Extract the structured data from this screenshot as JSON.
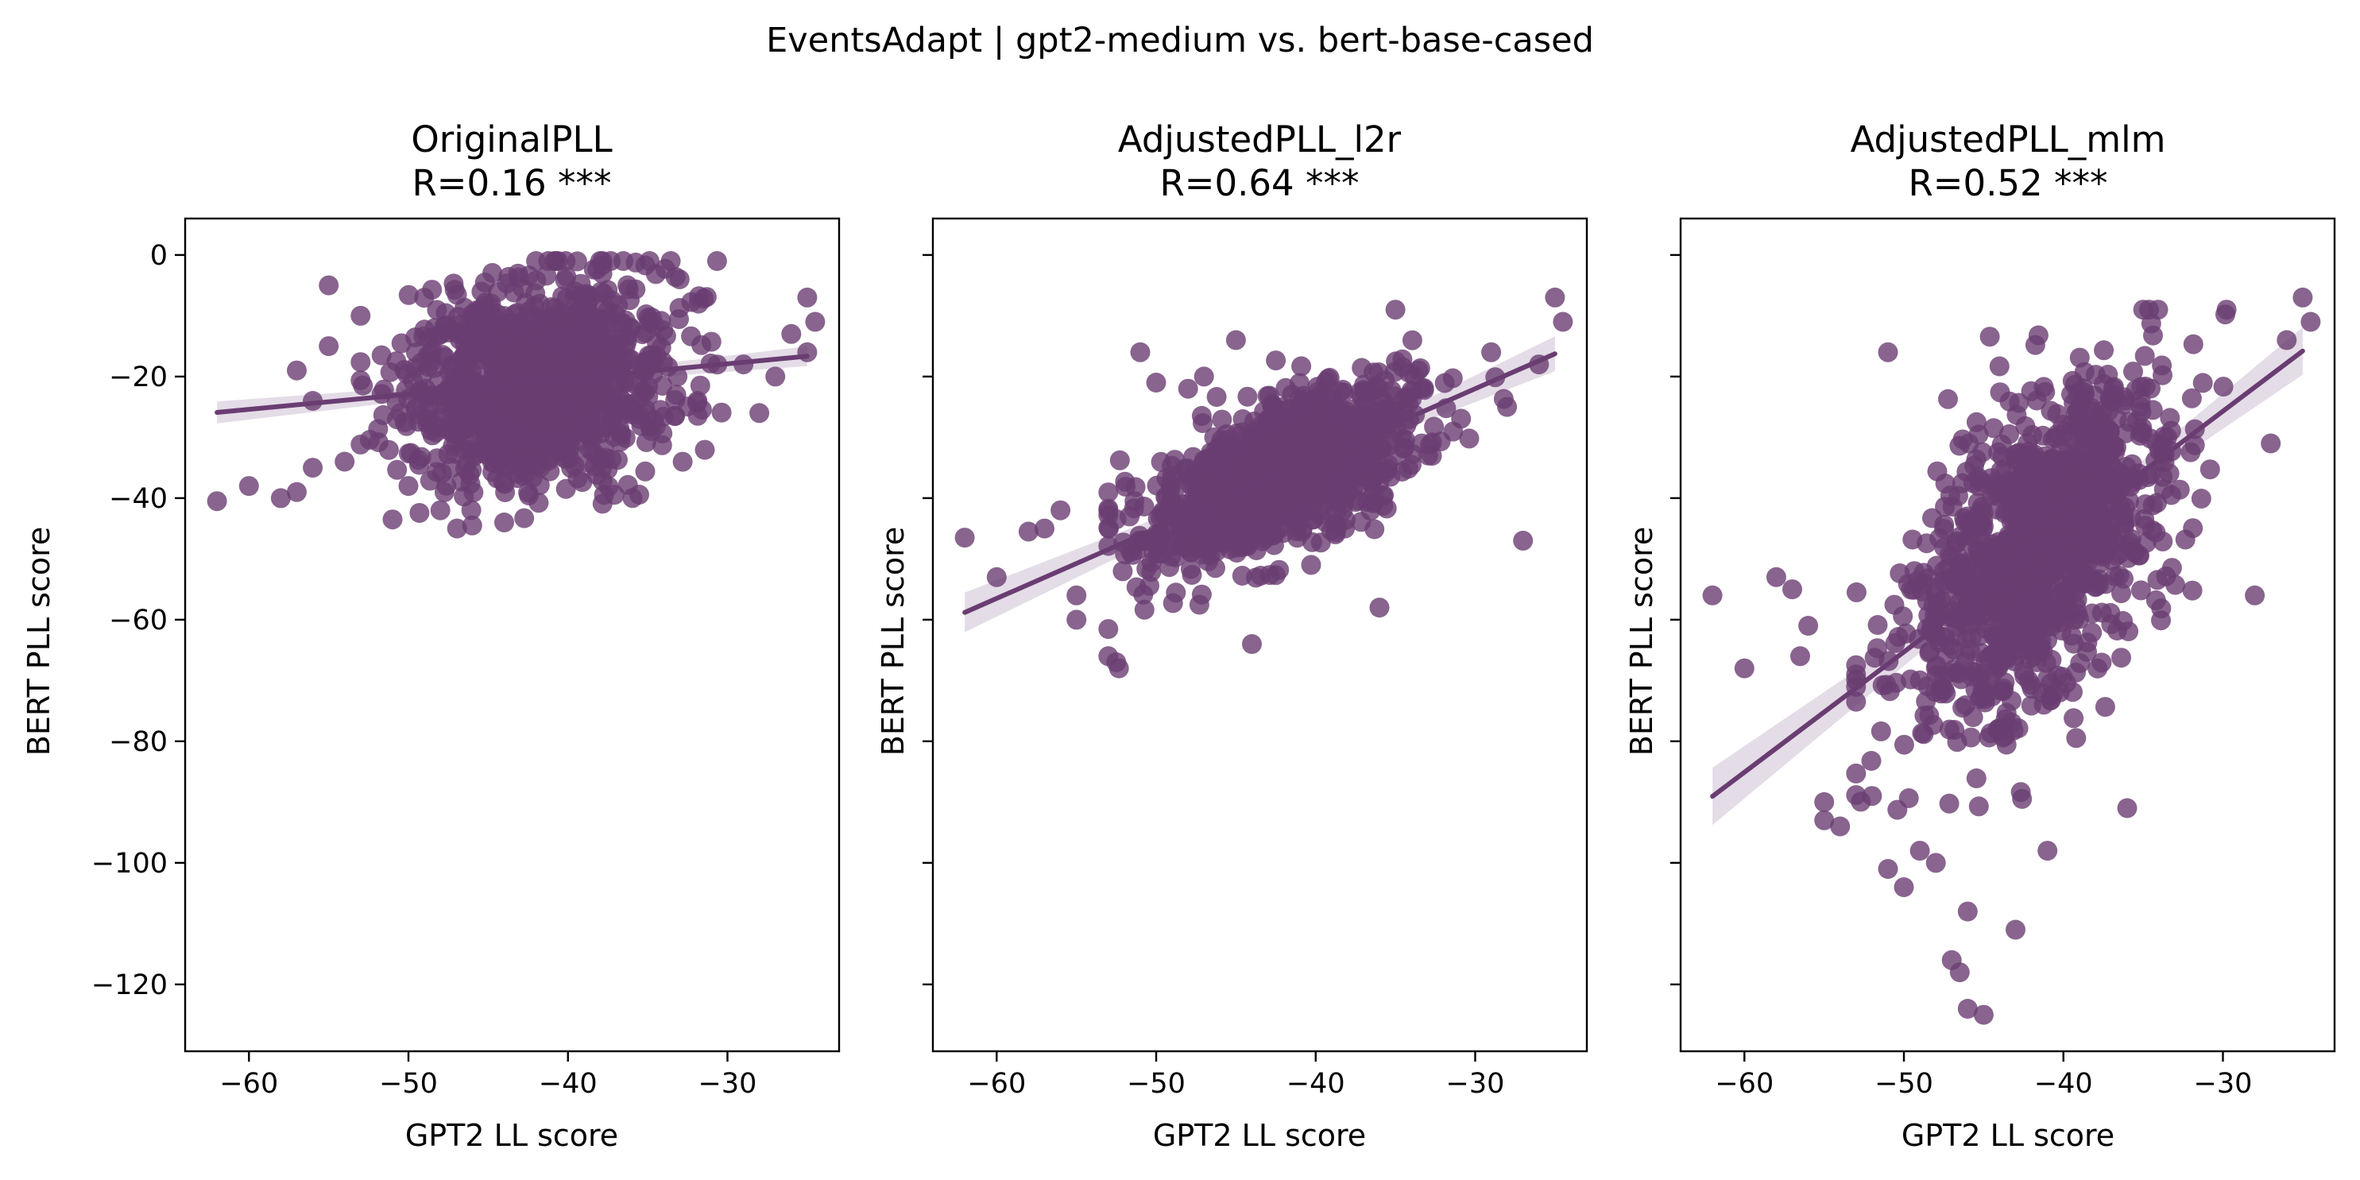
{
  "figure": {
    "suptitle": "EventsAdapt | gpt2-medium vs. bert-base-cased",
    "point_color": "#6a3d72",
    "band_color": "#6a3d72"
  },
  "chart_data": [
    {
      "type": "scatter",
      "title": "OriginalPLL",
      "stat": "R=0.16 ***",
      "xlabel": "GPT2 LL score",
      "ylabel": "BERT PLL score",
      "xlim": [
        -64,
        -23
      ],
      "ylim": [
        -131,
        6
      ],
      "xticks": [
        -60,
        -50,
        -40,
        -30
      ],
      "yticks": [
        0,
        -20,
        -40,
        -60,
        -80,
        -100,
        -120
      ],
      "ytick_labels_shown": true,
      "r": 0.16,
      "regression": {
        "slope": 0.25,
        "intercept": -10.4,
        "x_range": [
          -62,
          -25
        ]
      },
      "cloud": {
        "x_mean": -42,
        "x_sd": 4.2,
        "y_mean": -23,
        "y_sd": 8.5,
        "n": 1100,
        "y_min": -45,
        "y_max": -1
      },
      "outliers": [
        {
          "x": -62,
          "y": -40.5
        },
        {
          "x": -60,
          "y": -38
        },
        {
          "x": -58,
          "y": -40
        },
        {
          "x": -57,
          "y": -39
        },
        {
          "x": -56,
          "y": -35
        },
        {
          "x": -57,
          "y": -19
        },
        {
          "x": -56,
          "y": -24
        },
        {
          "x": -55,
          "y": -15
        },
        {
          "x": -54,
          "y": -34
        },
        {
          "x": -53,
          "y": -10
        },
        {
          "x": -55,
          "y": -5
        },
        {
          "x": -51,
          "y": -43.5
        },
        {
          "x": -50,
          "y": -38
        },
        {
          "x": -48,
          "y": -42
        },
        {
          "x": -46,
          "y": -44.5
        },
        {
          "x": -44,
          "y": -44
        },
        {
          "x": -28,
          "y": -26
        },
        {
          "x": -26,
          "y": -13
        },
        {
          "x": -25,
          "y": -7
        },
        {
          "x": -24.5,
          "y": -11
        },
        {
          "x": -25,
          "y": -16
        },
        {
          "x": -27,
          "y": -20
        },
        {
          "x": -29,
          "y": -18
        },
        {
          "x": -33,
          "y": -4
        }
      ]
    },
    {
      "type": "scatter",
      "title": "AdjustedPLL_l2r",
      "stat": "R=0.64 ***",
      "xlabel": "GPT2 LL score",
      "ylabel": "BERT PLL score",
      "xlim": [
        -64,
        -23
      ],
      "ylim": [
        -131,
        6
      ],
      "xticks": [
        -60,
        -50,
        -40,
        -30
      ],
      "yticks": [
        0,
        -20,
        -40,
        -60,
        -80,
        -100,
        -120
      ],
      "ytick_labels_shown": false,
      "r": 0.64,
      "regression": {
        "slope": 1.15,
        "intercept": 12.5,
        "x_range": [
          -62,
          -25
        ]
      },
      "cloud": {
        "x_mean": -42,
        "x_sd": 4.2,
        "y_mean": -35.8,
        "y_sd": 7.5,
        "n": 1100,
        "y_min": -68,
        "y_max": -7
      },
      "outliers": [
        {
          "x": -62,
          "y": -46.5
        },
        {
          "x": -60,
          "y": -53
        },
        {
          "x": -58,
          "y": -45.5
        },
        {
          "x": -57,
          "y": -45
        },
        {
          "x": -56,
          "y": -42
        },
        {
          "x": -55,
          "y": -56
        },
        {
          "x": -55,
          "y": -60
        },
        {
          "x": -53,
          "y": -66
        },
        {
          "x": -52.5,
          "y": -67
        },
        {
          "x": -51,
          "y": -16
        },
        {
          "x": -50,
          "y": -21
        },
        {
          "x": -48,
          "y": -22
        },
        {
          "x": -47,
          "y": -20
        },
        {
          "x": -45,
          "y": -14
        },
        {
          "x": -44,
          "y": -64
        },
        {
          "x": -36,
          "y": -58
        },
        {
          "x": -35,
          "y": -9
        },
        {
          "x": -28,
          "y": -25
        },
        {
          "x": -27,
          "y": -47
        },
        {
          "x": -25,
          "y": -7
        },
        {
          "x": -24.5,
          "y": -11
        },
        {
          "x": -26,
          "y": -18
        },
        {
          "x": -29,
          "y": -16
        }
      ]
    },
    {
      "type": "scatter",
      "title": "AdjustedPLL_mlm",
      "stat": "R=0.52 ***",
      "xlabel": "GPT2 LL score",
      "ylabel": "BERT PLL score",
      "xlim": [
        -64,
        -23
      ],
      "ylim": [
        -131,
        6
      ],
      "xticks": [
        -60,
        -50,
        -40,
        -30
      ],
      "yticks": [
        0,
        -20,
        -40,
        -60,
        -80,
        -100,
        -120
      ],
      "ytick_labels_shown": false,
      "r": 0.52,
      "regression": {
        "slope": 1.98,
        "intercept": 33.7,
        "x_range": [
          -62,
          -25
        ]
      },
      "cloud": {
        "x_mean": -41.5,
        "x_sd": 4.2,
        "y_mean": -48,
        "y_sd": 15,
        "n": 1100,
        "y_min": -112,
        "y_max": -9
      },
      "outliers": [
        {
          "x": -62,
          "y": -56
        },
        {
          "x": -60,
          "y": -68
        },
        {
          "x": -58,
          "y": -53
        },
        {
          "x": -57,
          "y": -55
        },
        {
          "x": -56,
          "y": -61
        },
        {
          "x": -56.5,
          "y": -66
        },
        {
          "x": -55,
          "y": -90
        },
        {
          "x": -55,
          "y": -93
        },
        {
          "x": -54,
          "y": -94
        },
        {
          "x": -53,
          "y": -69
        },
        {
          "x": -52,
          "y": -89
        },
        {
          "x": -51,
          "y": -16
        },
        {
          "x": -51,
          "y": -101
        },
        {
          "x": -50,
          "y": -104
        },
        {
          "x": -49,
          "y": -98
        },
        {
          "x": -48,
          "y": -100
        },
        {
          "x": -47,
          "y": -116
        },
        {
          "x": -46.5,
          "y": -118
        },
        {
          "x": -46,
          "y": -124
        },
        {
          "x": -45,
          "y": -125
        },
        {
          "x": -46,
          "y": -108
        },
        {
          "x": -43,
          "y": -111
        },
        {
          "x": -41,
          "y": -98
        },
        {
          "x": -36,
          "y": -91
        },
        {
          "x": -35,
          "y": -9
        },
        {
          "x": -28,
          "y": -56
        },
        {
          "x": -27,
          "y": -31
        },
        {
          "x": -25,
          "y": -7
        },
        {
          "x": -24.5,
          "y": -11
        },
        {
          "x": -26,
          "y": -14
        }
      ]
    }
  ]
}
